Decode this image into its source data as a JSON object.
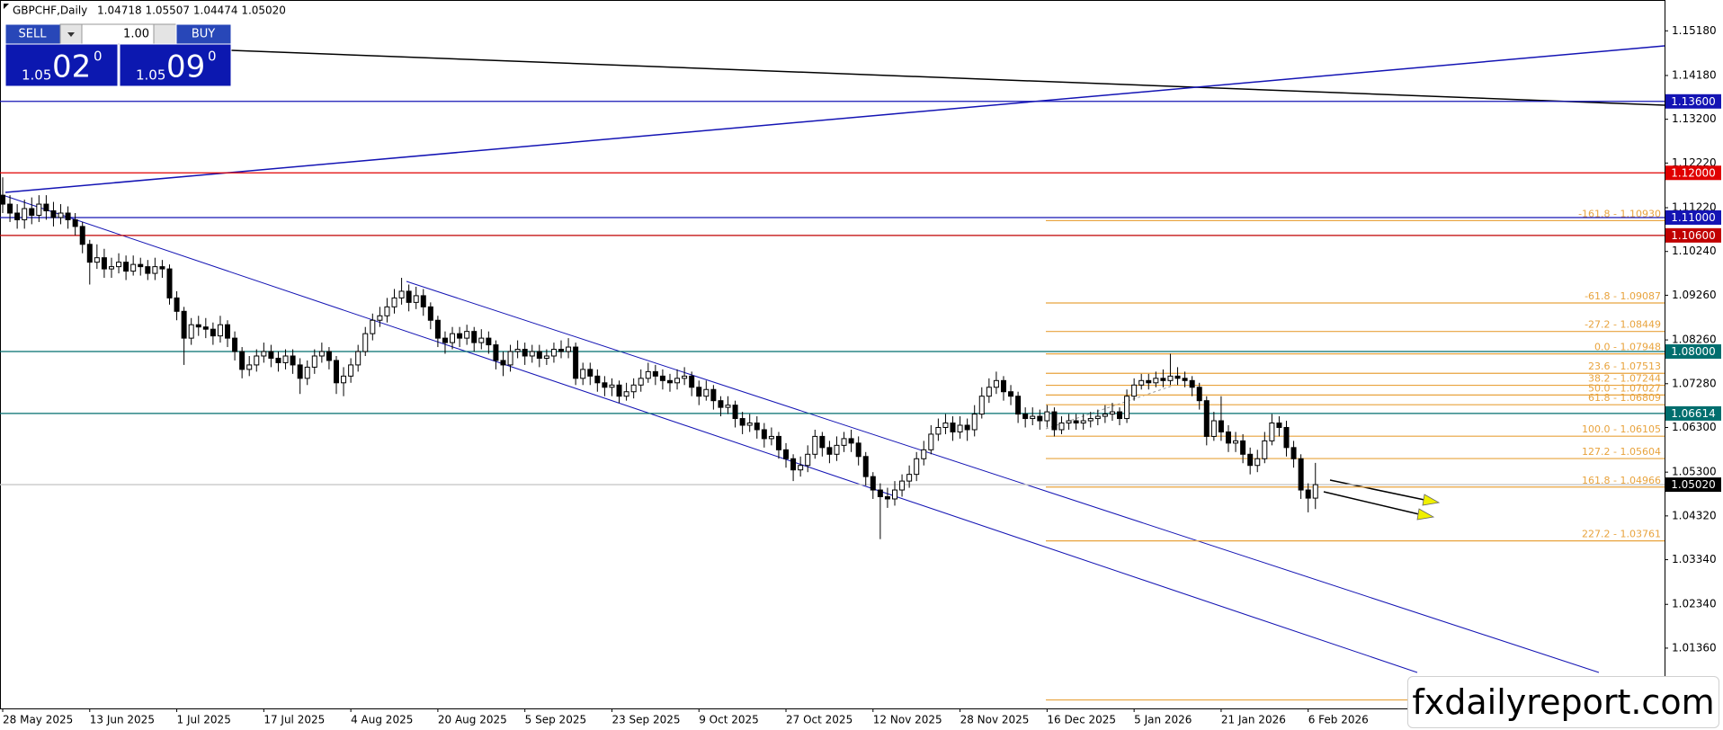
{
  "header": {
    "symbol": "GBPCHF,Daily",
    "ohlc": "1.04718 1.05507 1.04474 1.05020"
  },
  "trade_panel": {
    "sell": "SELL",
    "buy": "BUY",
    "lot": "1.00",
    "bid": {
      "big": "1.05",
      "pips": "02",
      "point": "0"
    },
    "ask": {
      "big": "1.05",
      "pips": "09",
      "point": "0"
    }
  },
  "logo": "fxdailyreport.com",
  "chart_data": {
    "type": "candlestick",
    "bull_color": "#ffffff",
    "bear_color": "#000000",
    "wick_color": "#000000",
    "ylim": [
      1.0001,
      1.1587
    ],
    "yticks": [
      {
        "value": 1.1518,
        "label": "1.15180"
      },
      {
        "value": 1.1418,
        "label": "1.14180"
      },
      {
        "value": 1.132,
        "label": "1.13200"
      },
      {
        "value": 1.1222,
        "label": "1.12220"
      },
      {
        "value": 1.1122,
        "label": "1.11220"
      },
      {
        "value": 1.1024,
        "label": "1.10240"
      },
      {
        "value": 1.0926,
        "label": "1.09260"
      },
      {
        "value": 1.0826,
        "label": "1.08260"
      },
      {
        "value": 1.0728,
        "label": "1.07280"
      },
      {
        "value": 1.063,
        "label": "1.06300"
      },
      {
        "value": 1.053,
        "label": "1.05300"
      },
      {
        "value": 1.0432,
        "label": "1.04320"
      },
      {
        "value": 1.0334,
        "label": "1.03340"
      },
      {
        "value": 1.0234,
        "label": "1.02340"
      },
      {
        "value": 1.0136,
        "label": "1.01360"
      }
    ],
    "hlines": [
      {
        "value": 1.136,
        "label": "1.13600",
        "color": "#1414b4"
      },
      {
        "value": 1.12,
        "label": "1.12000",
        "color": "#e00000"
      },
      {
        "value": 1.11,
        "label": "1.11000",
        "color": "#1414b4"
      },
      {
        "value": 1.106,
        "label": "1.10600",
        "color": "#c00000"
      },
      {
        "value": 1.08,
        "label": "1.08000",
        "color": "#006e6e"
      },
      {
        "value": 1.06614,
        "label": "1.06614",
        "color": "#006e6e"
      },
      {
        "value": 1.0502,
        "label": "1.05020",
        "color": "#000000",
        "line_color": "#c8c8c8"
      }
    ],
    "fib_color": "#e8a33d",
    "fib_levels": [
      {
        "value": 1.1093,
        "label": "-161.8 - 1.10930"
      },
      {
        "value": 1.09087,
        "label": "-61.8 - 1.09087"
      },
      {
        "value": 1.08449,
        "label": "-27.2 - 1.08449"
      },
      {
        "value": 1.07948,
        "label": "0.0 - 1.07948"
      },
      {
        "value": 1.07513,
        "label": "23.6 - 1.07513"
      },
      {
        "value": 1.07244,
        "label": "38.2 - 1.07244"
      },
      {
        "value": 1.07027,
        "label": "50.0 - 1.07027"
      },
      {
        "value": 1.06809,
        "label": "61.8 - 1.06809"
      },
      {
        "value": 1.06105,
        "label": "100.0 - 1.06105"
      },
      {
        "value": 1.05604,
        "label": "127.2 - 1.05604"
      },
      {
        "value": 1.04966,
        "label": "161.8 - 1.04966"
      },
      {
        "value": 1.03761,
        "label": "227.2 - 1.03761"
      },
      {
        "value": 1.002
      }
    ],
    "categories": [
      "28 May 2025",
      null,
      null,
      null,
      null,
      null,
      null,
      null,
      null,
      null,
      null,
      null,
      "13 Jun 2025",
      null,
      null,
      null,
      null,
      null,
      null,
      null,
      null,
      null,
      null,
      null,
      "1 Jul 2025",
      null,
      null,
      null,
      null,
      null,
      null,
      null,
      null,
      null,
      null,
      null,
      "17 Jul 2025",
      null,
      null,
      null,
      null,
      null,
      null,
      null,
      null,
      null,
      null,
      null,
      "4 Aug 2025",
      null,
      null,
      null,
      null,
      null,
      null,
      null,
      null,
      null,
      null,
      null,
      "20 Aug 2025",
      null,
      null,
      null,
      null,
      null,
      null,
      null,
      null,
      null,
      null,
      null,
      "5 Sep 2025",
      null,
      null,
      null,
      null,
      null,
      null,
      null,
      null,
      null,
      null,
      null,
      "23 Sep 2025",
      null,
      null,
      null,
      null,
      null,
      null,
      null,
      null,
      null,
      null,
      null,
      "9 Oct 2025",
      null,
      null,
      null,
      null,
      null,
      null,
      null,
      null,
      null,
      null,
      null,
      "27 Oct 2025",
      null,
      null,
      null,
      null,
      null,
      null,
      null,
      null,
      null,
      null,
      null,
      "12 Nov 2025",
      null,
      null,
      null,
      null,
      null,
      null,
      null,
      null,
      null,
      null,
      null,
      "28 Nov 2025",
      null,
      null,
      null,
      null,
      null,
      null,
      null,
      null,
      null,
      null,
      null,
      "16 Dec 2025",
      null,
      null,
      null,
      null,
      null,
      null,
      null,
      null,
      null,
      null,
      null,
      "5 Jan 2026",
      null,
      null,
      null,
      null,
      null,
      null,
      null,
      null,
      null,
      null,
      null,
      "21 Jan 2026",
      null,
      null,
      null,
      null,
      null,
      null,
      null,
      null,
      null,
      null,
      null,
      "6 Feb 2026",
      null
    ],
    "open": [
      1.115,
      1.113,
      1.111,
      1.1095,
      1.112,
      1.1105,
      1.113,
      1.1115,
      1.11,
      1.111,
      1.1095,
      1.108,
      1.104,
      1.1,
      1.101,
      1.0985,
      1.099,
      1.1,
      1.098,
      1.0995,
      1.099,
      1.0975,
      1.099,
      1.0985,
      1.092,
      1.089,
      1.083,
      1.086,
      1.0855,
      1.085,
      1.0835,
      1.086,
      1.083,
      1.08,
      1.076,
      1.077,
      1.079,
      1.08,
      1.0785,
      1.0775,
      1.079,
      1.077,
      1.074,
      1.0765,
      1.079,
      1.08,
      1.078,
      1.073,
      1.0745,
      1.077,
      1.08,
      1.084,
      1.087,
      1.088,
      1.09,
      1.092,
      1.0935,
      1.091,
      1.0925,
      1.09,
      1.087,
      1.083,
      1.082,
      1.084,
      1.083,
      1.0845,
      1.082,
      1.083,
      1.0815,
      1.078,
      1.077,
      1.08,
      1.0805,
      1.079,
      1.08,
      1.0785,
      1.079,
      1.0805,
      1.08,
      1.081,
      1.074,
      1.076,
      1.0745,
      1.073,
      1.072,
      1.0725,
      1.07,
      1.071,
      1.0725,
      1.074,
      1.0755,
      1.0745,
      1.0735,
      1.073,
      1.074,
      1.0745,
      1.072,
      1.07,
      1.0715,
      1.069,
      1.0675,
      1.068,
      1.065,
      1.0635,
      1.064,
      1.0625,
      1.0605,
      1.061,
      1.058,
      1.056,
      1.0535,
      1.0545,
      1.057,
      1.061,
      1.0585,
      1.057,
      1.059,
      1.0605,
      1.0595,
      1.0565,
      1.052,
      1.049,
      1.0475,
      1.047,
      1.049,
      1.051,
      1.0525,
      1.056,
      1.058,
      1.0615,
      1.063,
      1.064,
      1.062,
      1.0635,
      1.0625,
      1.066,
      1.07,
      1.072,
      1.0735,
      1.071,
      1.07,
      1.066,
      1.065,
      1.0655,
      1.0645,
      1.0665,
      1.0625,
      1.064,
      1.0645,
      1.064,
      1.0645,
      1.065,
      1.0655,
      1.066,
      1.0665,
      1.065,
      1.07,
      1.0725,
      1.0735,
      1.073,
      1.074,
      1.0735,
      1.0745,
      1.074,
      1.0735,
      1.072,
      1.069,
      1.061,
      1.0645,
      1.062,
      1.0595,
      1.06,
      1.057,
      1.0545,
      1.056,
      1.06,
      1.064,
      1.063,
      1.0585,
      1.056,
      1.049,
      1.04718
    ],
    "high": [
      1.119,
      1.115,
      1.113,
      1.114,
      1.1145,
      1.115,
      1.115,
      1.1135,
      1.113,
      1.1125,
      1.111,
      1.109,
      1.105,
      1.104,
      1.103,
      1.101,
      1.102,
      1.1015,
      1.1015,
      1.101,
      1.1005,
      1.101,
      1.1005,
      1.0995,
      1.0935,
      1.09,
      1.0875,
      1.088,
      1.0875,
      1.0865,
      1.088,
      1.087,
      1.0845,
      1.081,
      1.079,
      1.0805,
      1.082,
      1.0815,
      1.08,
      1.0805,
      1.0805,
      1.0785,
      1.078,
      1.0805,
      1.082,
      1.081,
      1.079,
      1.0765,
      1.0785,
      1.0815,
      1.0855,
      1.0885,
      1.09,
      1.092,
      1.094,
      1.0965,
      1.095,
      1.0945,
      1.094,
      1.091,
      1.088,
      1.0845,
      1.0855,
      1.0855,
      1.086,
      1.0855,
      1.085,
      1.0845,
      1.0825,
      1.08,
      1.0815,
      1.0825,
      1.082,
      1.0815,
      1.0815,
      1.0805,
      1.082,
      1.0825,
      1.083,
      1.082,
      1.0775,
      1.0775,
      1.076,
      1.0745,
      1.074,
      1.0735,
      1.073,
      1.074,
      1.076,
      1.0775,
      1.077,
      1.076,
      1.075,
      1.076,
      1.0765,
      1.0755,
      1.0735,
      1.0735,
      1.0725,
      1.07,
      1.07,
      1.069,
      1.0665,
      1.066,
      1.0655,
      1.064,
      1.063,
      1.062,
      1.0595,
      1.057,
      1.0565,
      1.059,
      1.0625,
      1.062,
      1.06,
      1.061,
      1.062,
      1.0625,
      1.061,
      1.0575,
      1.053,
      1.0505,
      1.0495,
      1.051,
      1.0525,
      1.0545,
      1.0575,
      1.06,
      1.0635,
      1.065,
      1.066,
      1.0655,
      1.0655,
      1.065,
      1.068,
      1.072,
      1.074,
      1.0755,
      1.0745,
      1.0725,
      1.071,
      1.0675,
      1.0675,
      1.067,
      1.068,
      1.0675,
      1.0655,
      1.066,
      1.066,
      1.066,
      1.0665,
      1.067,
      1.068,
      1.0685,
      1.0675,
      1.0715,
      1.074,
      1.075,
      1.075,
      1.0755,
      1.076,
      1.0795,
      1.0765,
      1.0755,
      1.0745,
      1.073,
      1.07,
      1.0665,
      1.07,
      1.0635,
      1.062,
      1.0615,
      1.0585,
      1.058,
      1.062,
      1.066,
      1.0655,
      1.0645,
      1.06,
      1.057,
      1.0505,
      1.05507
    ],
    "low": [
      1.111,
      1.109,
      1.1075,
      1.1075,
      1.1085,
      1.109,
      1.1095,
      1.108,
      1.1085,
      1.1075,
      1.106,
      1.102,
      1.095,
      1.0985,
      1.0965,
      1.0965,
      1.0975,
      1.096,
      1.097,
      1.097,
      1.096,
      1.096,
      1.0965,
      1.0905,
      1.087,
      1.077,
      1.0815,
      1.0835,
      1.083,
      1.0815,
      1.082,
      1.081,
      1.078,
      1.074,
      1.0745,
      1.0755,
      1.0775,
      1.0765,
      1.0755,
      1.076,
      1.075,
      1.0705,
      1.0725,
      1.075,
      1.0775,
      1.076,
      1.0705,
      1.07,
      1.073,
      1.0755,
      1.079,
      1.0825,
      1.0855,
      1.0865,
      1.0885,
      1.0905,
      1.089,
      1.0895,
      1.088,
      1.085,
      1.081,
      1.0795,
      1.0805,
      1.081,
      1.0815,
      1.08,
      1.0805,
      1.0795,
      1.076,
      1.0745,
      1.0755,
      1.0785,
      1.077,
      1.0775,
      1.0765,
      1.077,
      1.0775,
      1.0785,
      1.0785,
      1.0725,
      1.0725,
      1.0725,
      1.071,
      1.07,
      1.07,
      1.0685,
      1.069,
      1.0695,
      1.071,
      1.073,
      1.0725,
      1.0715,
      1.071,
      1.0715,
      1.0725,
      1.07,
      1.068,
      1.069,
      1.067,
      1.0655,
      1.066,
      1.063,
      1.0615,
      1.062,
      1.0605,
      1.0585,
      1.059,
      1.056,
      1.054,
      1.051,
      1.052,
      1.053,
      1.056,
      1.0565,
      1.055,
      1.0555,
      1.0575,
      1.0575,
      1.0545,
      1.05,
      1.047,
      1.038,
      1.045,
      1.0455,
      1.0475,
      1.0495,
      1.051,
      1.0545,
      1.057,
      1.06,
      1.0615,
      1.06,
      1.0605,
      1.06,
      1.061,
      1.065,
      1.0685,
      1.0705,
      1.069,
      1.068,
      1.064,
      1.063,
      1.0635,
      1.0625,
      1.063,
      1.061,
      1.0615,
      1.0625,
      1.0625,
      1.0625,
      1.063,
      1.0635,
      1.064,
      1.0645,
      1.0635,
      1.064,
      1.069,
      1.0715,
      1.0715,
      1.072,
      1.072,
      1.0725,
      1.0725,
      1.072,
      1.07,
      1.067,
      1.059,
      1.06,
      1.06,
      1.0575,
      1.0575,
      1.055,
      1.0525,
      1.053,
      1.055,
      1.059,
      1.061,
      1.0565,
      1.054,
      1.047,
      1.044,
      1.04474
    ],
    "close": [
      1.113,
      1.111,
      1.1095,
      1.112,
      1.1105,
      1.113,
      1.1115,
      1.11,
      1.111,
      1.1095,
      1.108,
      1.104,
      1.1,
      1.101,
      1.0985,
      1.099,
      1.1,
      1.098,
      1.0995,
      1.099,
      1.0975,
      1.099,
      1.0985,
      1.092,
      1.089,
      1.083,
      1.086,
      1.0855,
      1.085,
      1.0835,
      1.086,
      1.083,
      1.08,
      1.076,
      1.077,
      1.079,
      1.08,
      1.0785,
      1.0775,
      1.079,
      1.077,
      1.074,
      1.0765,
      1.079,
      1.08,
      1.078,
      1.073,
      1.0745,
      1.077,
      1.08,
      1.084,
      1.087,
      1.088,
      1.09,
      1.092,
      1.0935,
      1.091,
      1.0925,
      1.09,
      1.087,
      1.083,
      1.082,
      1.084,
      1.083,
      1.0845,
      1.082,
      1.083,
      1.0815,
      1.078,
      1.077,
      1.08,
      1.0805,
      1.079,
      1.08,
      1.0785,
      1.079,
      1.0805,
      1.08,
      1.081,
      1.074,
      1.076,
      1.0745,
      1.073,
      1.072,
      1.0725,
      1.07,
      1.071,
      1.0725,
      1.074,
      1.0755,
      1.0745,
      1.0735,
      1.073,
      1.074,
      1.0745,
      1.072,
      1.07,
      1.0715,
      1.069,
      1.0675,
      1.068,
      1.065,
      1.0635,
      1.064,
      1.0625,
      1.0605,
      1.061,
      1.058,
      1.056,
      1.0535,
      1.0545,
      1.057,
      1.061,
      1.0585,
      1.057,
      1.059,
      1.0605,
      1.0595,
      1.0565,
      1.052,
      1.049,
      1.0475,
      1.047,
      1.049,
      1.051,
      1.0525,
      1.056,
      1.058,
      1.0615,
      1.063,
      1.064,
      1.062,
      1.0635,
      1.0625,
      1.066,
      1.07,
      1.072,
      1.0735,
      1.071,
      1.07,
      1.066,
      1.065,
      1.0655,
      1.0645,
      1.0665,
      1.0625,
      1.064,
      1.0645,
      1.064,
      1.0645,
      1.065,
      1.0655,
      1.066,
      1.0665,
      1.065,
      1.07,
      1.0725,
      1.0735,
      1.073,
      1.074,
      1.0735,
      1.0745,
      1.074,
      1.0735,
      1.072,
      1.069,
      1.061,
      1.0645,
      1.062,
      1.0595,
      1.06,
      1.057,
      1.0545,
      1.056,
      1.06,
      1.064,
      1.063,
      1.0585,
      1.056,
      1.049,
      1.04718,
      1.0502
    ]
  }
}
